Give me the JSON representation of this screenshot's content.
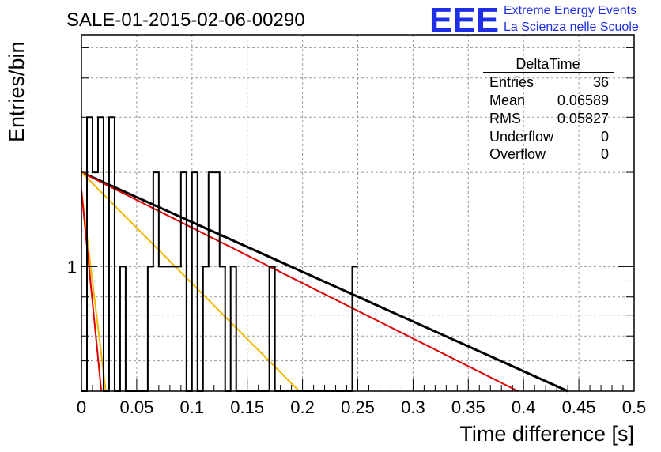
{
  "chart_data": {
    "type": "histogram",
    "title": "SALE-01-2015-02-06-00290",
    "xlabel": "Time difference [s]",
    "ylabel": "Entries/bin",
    "xlim": [
      0,
      0.5
    ],
    "ylim": [
      0.4,
      5.5
    ],
    "yscale": "log",
    "grid": true,
    "x_ticks": [
      "0",
      "0.05",
      "0.1",
      "0.15",
      "0.2",
      "0.25",
      "0.3",
      "0.35",
      "0.4",
      "0.45",
      "0.5"
    ],
    "y_ticks": [
      "1"
    ],
    "bin_width": 0.005,
    "bins": [
      0.0,
      0.005,
      0.01,
      0.015,
      0.02,
      0.025,
      0.03,
      0.035,
      0.04,
      0.045,
      0.05,
      0.055,
      0.06,
      0.065,
      0.07,
      0.075,
      0.08,
      0.085,
      0.09,
      0.095,
      0.1,
      0.105,
      0.11,
      0.115,
      0.12,
      0.125,
      0.13,
      0.135,
      0.14,
      0.145,
      0.15,
      0.155,
      0.16,
      0.165,
      0.17,
      0.175,
      0.18,
      0.185,
      0.19,
      0.195,
      0.2,
      0.205,
      0.21,
      0.215,
      0.22,
      0.225,
      0.23,
      0.235,
      0.24,
      0.245,
      0.25
    ],
    "counts": [
      0,
      3,
      2,
      3,
      0,
      3,
      0,
      1,
      0,
      0,
      0,
      0,
      1,
      2,
      1,
      1,
      1,
      1,
      2,
      0,
      2,
      0,
      1,
      2,
      2,
      1,
      0,
      1,
      0,
      0,
      0,
      0,
      0,
      0,
      1,
      0,
      0,
      0,
      0,
      0,
      0,
      0,
      0,
      0,
      0,
      0,
      0,
      0,
      0,
      1
    ],
    "fits": [
      {
        "color": "#000000",
        "width": 3,
        "points": [
          [
            0.0,
            2.0
          ],
          [
            0.44,
            0.4
          ]
        ]
      },
      {
        "color": "#e00000",
        "width": 2,
        "points": [
          [
            0.0,
            2.0
          ],
          [
            0.395,
            0.4
          ]
        ]
      },
      {
        "color": "#f0b800",
        "width": 2,
        "points": [
          [
            0.0,
            2.0
          ],
          [
            0.197,
            0.4
          ]
        ]
      },
      {
        "color": "#f0b800",
        "width": 2,
        "points": [
          [
            0.0,
            1.75
          ],
          [
            0.022,
            0.4
          ]
        ]
      },
      {
        "color": "#e00000",
        "width": 2,
        "points": [
          [
            0.0,
            1.75
          ],
          [
            0.018,
            0.4
          ]
        ]
      }
    ],
    "stats": {
      "name": "DeltaTime",
      "rows": [
        {
          "label": "Entries",
          "value": "36"
        },
        {
          "label": "Mean",
          "value": "0.06589"
        },
        {
          "label": "RMS",
          "value": "0.05827"
        },
        {
          "label": "Underflow",
          "value": "0"
        },
        {
          "label": "Overflow",
          "value": "0"
        }
      ]
    }
  },
  "logo": {
    "mark": "EEE",
    "line1": "Extreme Energy Events",
    "line2": "La Scienza nelle Scuole"
  }
}
